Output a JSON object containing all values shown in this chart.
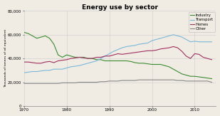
{
  "title": "Energy use by sector",
  "ylabel": "Thousands of tonnes of oil equivalent",
  "ylim": [
    0,
    80000
  ],
  "yticks": [
    0,
    20000,
    40000,
    60000,
    80000
  ],
  "xlim": [
    1970,
    2015
  ],
  "xticks": [
    1970,
    1980,
    1990,
    2000,
    2010
  ],
  "legend": [
    "Industry",
    "Transport",
    "Homes",
    "Other"
  ],
  "colors": {
    "Industry": "#3a8c30",
    "Transport": "#7ab8d9",
    "Homes": "#a03060",
    "Other": "#888888"
  },
  "bg_color": "#f0ece4",
  "industry": [
    62000,
    61000,
    59000,
    57000,
    58000,
    59000,
    57000,
    52000,
    43000,
    41000,
    43000,
    42000,
    41000,
    41000,
    41000,
    40000,
    40000,
    39000,
    39000,
    38000,
    38000,
    38000,
    38000,
    38000,
    38000,
    37500,
    36500,
    36000,
    36000,
    35500,
    35000,
    35000,
    35000,
    34000,
    33000,
    31000,
    29000,
    27000,
    26000,
    25000,
    25000,
    24500,
    24000,
    23500,
    23000
  ],
  "transport": [
    28000,
    28500,
    29000,
    29000,
    29500,
    30000,
    30000,
    31000,
    31000,
    31000,
    32000,
    33000,
    33500,
    34000,
    35000,
    36000,
    37000,
    38000,
    40000,
    42000,
    44000,
    46000,
    47500,
    49000,
    50000,
    50500,
    51000,
    52000,
    52500,
    53000,
    55000,
    56000,
    57000,
    58000,
    59000,
    60000,
    59000,
    58000,
    56000,
    54000,
    54500,
    54000,
    54000,
    54000,
    54000
  ],
  "homes": [
    37000,
    37000,
    36500,
    36000,
    36000,
    37000,
    37500,
    36500,
    38000,
    38500,
    39000,
    40000,
    40500,
    41000,
    40500,
    40000,
    40000,
    41000,
    41000,
    42000,
    42000,
    43000,
    44000,
    43500,
    44000,
    44500,
    45000,
    45500,
    46000,
    46500,
    46500,
    47000,
    48000,
    48500,
    49000,
    50000,
    49000,
    46000,
    42000,
    40000,
    44000,
    43500,
    41000,
    40000,
    39000
  ],
  "other": [
    19000,
    19000,
    19000,
    19000,
    19000,
    19000,
    19000,
    19000,
    19000,
    19500,
    19500,
    19500,
    19500,
    20000,
    20000,
    20000,
    20000,
    20000,
    20500,
    20500,
    21000,
    21000,
    21000,
    21500,
    21500,
    21500,
    21500,
    22000,
    22000,
    22000,
    22000,
    22000,
    22000,
    22000,
    22000,
    22000,
    21500,
    21500,
    21000,
    21000,
    21000,
    21000,
    21000,
    21000,
    20000
  ]
}
